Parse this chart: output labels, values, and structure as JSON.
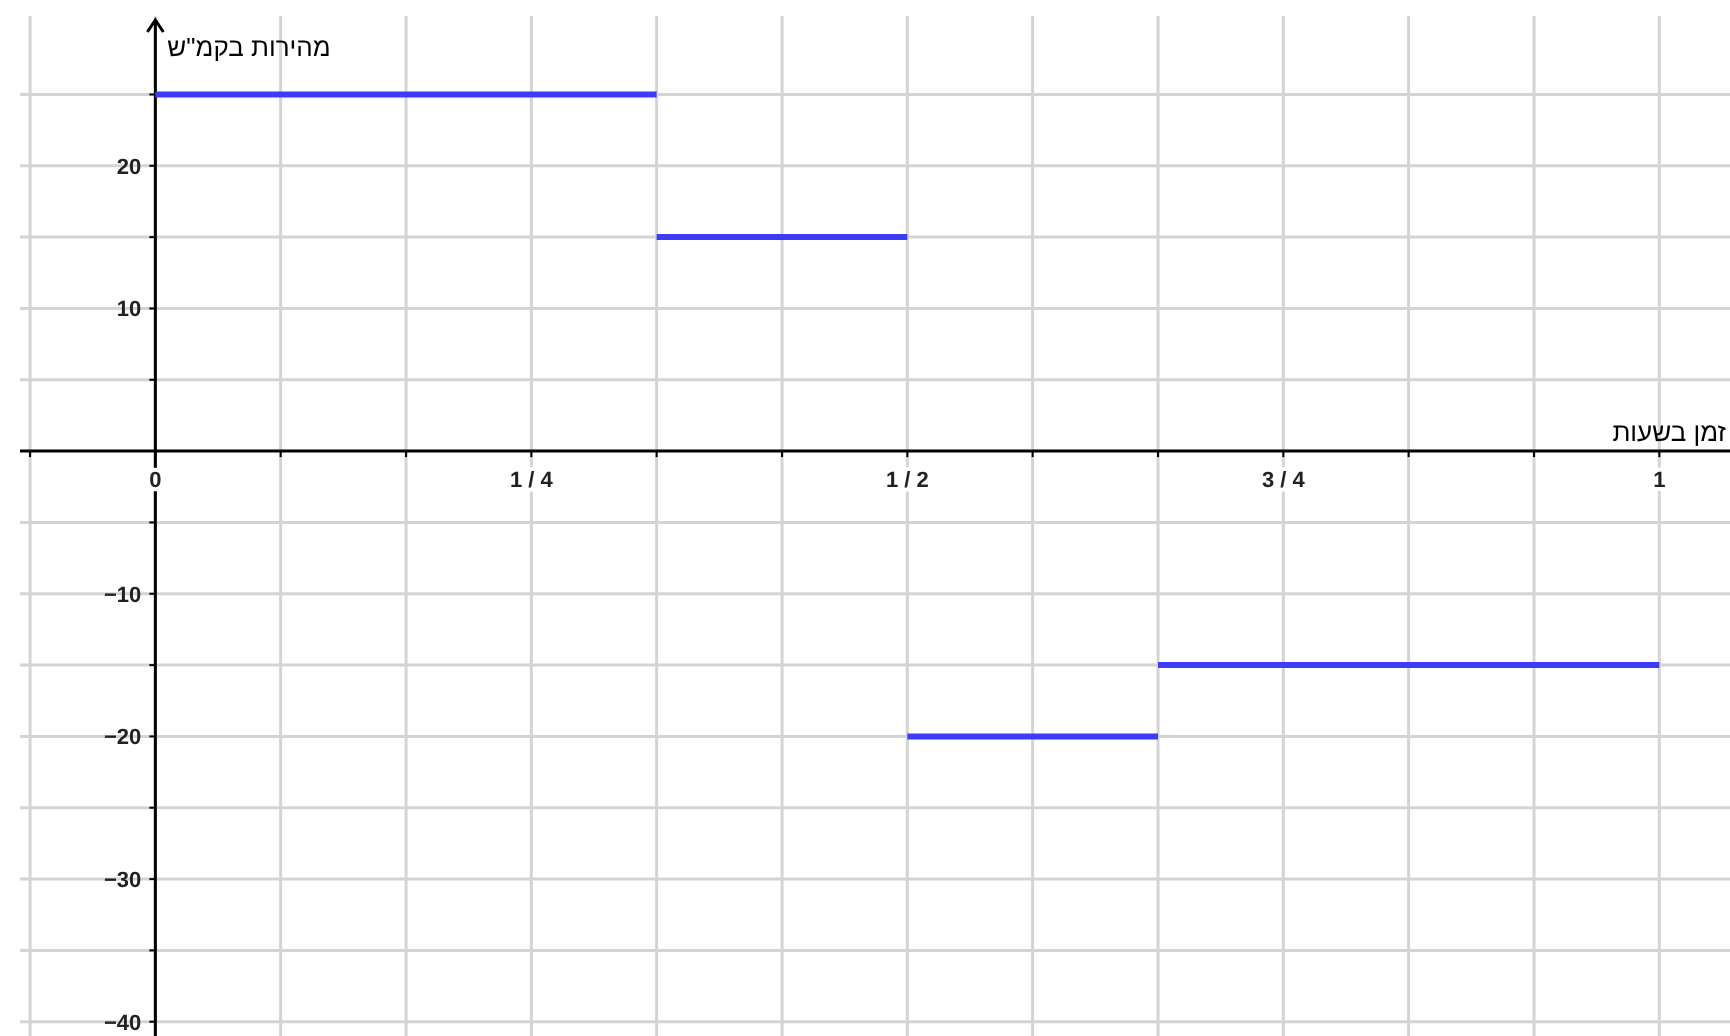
{
  "chart_data": {
    "type": "line",
    "xlabel": "זמן בשעות",
    "ylabel": "מהירות בקמ\"ש",
    "xlim": [
      -0.09,
      1.047
    ],
    "ylim": [
      -41,
      30.5
    ],
    "xticks": [
      {
        "value": -0.0833,
        "label": null
      },
      0,
      {
        "value": 0.0833,
        "label": null
      },
      {
        "value": 0.1667,
        "label": null
      },
      {
        "value": 0.25,
        "label": "1 / 4"
      },
      {
        "value": 0.3333,
        "label": null
      },
      {
        "value": 0.4167,
        "label": null
      },
      {
        "value": 0.5,
        "label": "1 / 2"
      },
      {
        "value": 0.5833,
        "label": null
      },
      {
        "value": 0.6667,
        "label": null
      },
      {
        "value": 0.75,
        "label": "3 / 4"
      },
      {
        "value": 0.8333,
        "label": null
      },
      {
        "value": 0.9167,
        "label": null
      },
      1
    ],
    "yticks": [
      -40,
      {
        "value": -35,
        "label": null
      },
      -30,
      {
        "value": -25,
        "label": null
      },
      -20,
      {
        "value": -15,
        "label": null
      },
      -10,
      {
        "value": -5,
        "label": null
      },
      {
        "value": 5,
        "label": null
      },
      10,
      {
        "value": 15,
        "label": null
      },
      20,
      {
        "value": 25,
        "label": null
      }
    ],
    "grid": true,
    "marker": "none",
    "line_style": "solid",
    "series": [
      {
        "color": "#3c3cf5",
        "x": [
          0,
          0.3333
        ],
        "values": [
          25,
          25
        ]
      },
      {
        "color": "#3c3cf5",
        "x": [
          0.3333,
          0.5
        ],
        "values": [
          15,
          15
        ]
      },
      {
        "color": "#3c3cf5",
        "x": [
          0.5,
          0.6667
        ],
        "values": [
          -20,
          -20
        ]
      },
      {
        "color": "#3c3cf5",
        "x": [
          0.6667,
          1
        ],
        "values": [
          -15,
          -15
        ]
      }
    ]
  }
}
